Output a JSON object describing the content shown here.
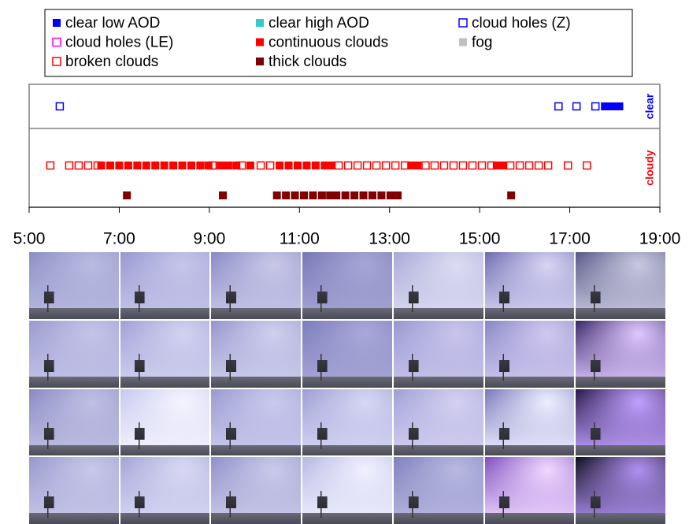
{
  "chart_data": {
    "type": "timeline",
    "xlim": [
      5,
      19
    ],
    "xticks": [
      {
        "value": 5,
        "label": "5:00"
      },
      {
        "value": 7,
        "label": "7:00"
      },
      {
        "value": 9,
        "label": "9:00"
      },
      {
        "value": 11,
        "label": "11:00"
      },
      {
        "value": 13,
        "label": "13:00"
      },
      {
        "value": 15,
        "label": "15:00"
      },
      {
        "value": 17,
        "label": "17:00"
      },
      {
        "value": 19,
        "label": "19:00"
      }
    ],
    "series": [
      {
        "name": "clear low AOD",
        "color": "#0000ff",
        "filled": true,
        "x": [
          17.78,
          17.9,
          18.0,
          18.1
        ]
      },
      {
        "name": "clear high AOD",
        "color": "#33cccc",
        "filled": true,
        "x": []
      },
      {
        "name": "cloud holes (Z)",
        "color": "#0000ff",
        "filled": false,
        "x": [
          5.68,
          16.75,
          17.15,
          17.57
        ]
      },
      {
        "name": "cloud holes (LE)",
        "color": "#ff00ff",
        "filled": false,
        "x": []
      },
      {
        "name": "continuous clouds",
        "color": "#ff0000",
        "filled": true,
        "x": [
          6.6,
          6.8,
          7.0,
          7.2,
          7.4,
          7.6,
          7.8,
          8.0,
          8.2,
          8.4,
          8.6,
          8.8,
          8.98,
          9.25,
          9.42,
          9.6,
          9.91,
          10.56,
          10.76,
          10.96,
          11.16,
          11.36,
          11.56,
          11.7,
          13.48,
          13.62,
          15.38,
          15.52
        ]
      },
      {
        "name": "fog",
        "color": "#c0c0c0",
        "filled": true,
        "x": []
      },
      {
        "name": "broken clouds",
        "color": "#ff0000",
        "filled": false,
        "x": [
          5.47,
          5.89,
          6.1,
          6.31,
          6.52,
          9.07,
          9.72,
          10.14,
          10.35,
          11.87,
          12.08,
          12.29,
          12.5,
          12.71,
          12.92,
          13.13,
          13.34,
          13.8,
          14.0,
          14.21,
          14.42,
          14.63,
          14.84,
          15.05,
          15.26,
          15.68,
          15.89,
          16.1,
          16.31,
          16.52,
          16.96,
          17.38
        ]
      },
      {
        "name": "thick clouds",
        "color": "#800000",
        "filled": true,
        "x": [
          7.17,
          9.3,
          10.5,
          10.7,
          10.9,
          11.1,
          11.3,
          11.5,
          11.68,
          11.82,
          12.02,
          12.22,
          12.42,
          12.62,
          12.82,
          13.02,
          13.18,
          15.7
        ]
      }
    ],
    "rows": [
      {
        "label": "clear",
        "color": "#0000ff",
        "lanes": [
          [
            "cloud holes (Z)",
            "clear low AOD"
          ]
        ]
      },
      {
        "label": "cloudy",
        "color": "#ff0000",
        "lanes": [
          [
            "broken clouds",
            "continuous clouds"
          ],
          [
            "thick clouds"
          ]
        ]
      }
    ]
  }
}
